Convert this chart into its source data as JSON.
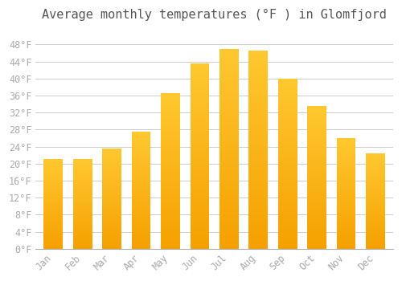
{
  "title": "Average monthly temperatures (°F ) in Glomfjord",
  "months": [
    "Jan",
    "Feb",
    "Mar",
    "Apr",
    "May",
    "Jun",
    "Jul",
    "Aug",
    "Sep",
    "Oct",
    "Nov",
    "Dec"
  ],
  "values": [
    21.0,
    21.0,
    23.5,
    27.5,
    36.5,
    43.5,
    47.0,
    46.5,
    40.0,
    33.5,
    26.0,
    22.5
  ],
  "bar_color_top": "#FFC020",
  "bar_color_bottom": "#F5A000",
  "background_color": "#FFFFFF",
  "grid_color": "#CCCCCC",
  "tick_label_color": "#AAAAAA",
  "title_color": "#555555",
  "ylim": [
    0,
    52
  ],
  "yticks": [
    0,
    4,
    8,
    12,
    16,
    20,
    24,
    28,
    32,
    36,
    40,
    44,
    48
  ],
  "ytick_labels": [
    "0°F",
    "4°F",
    "8°F",
    "12°F",
    "16°F",
    "20°F",
    "24°F",
    "28°F",
    "32°F",
    "36°F",
    "40°F",
    "44°F",
    "48°F"
  ],
  "title_fontsize": 11,
  "tick_fontsize": 8.5,
  "figsize": [
    5.0,
    3.5
  ],
  "dpi": 100
}
